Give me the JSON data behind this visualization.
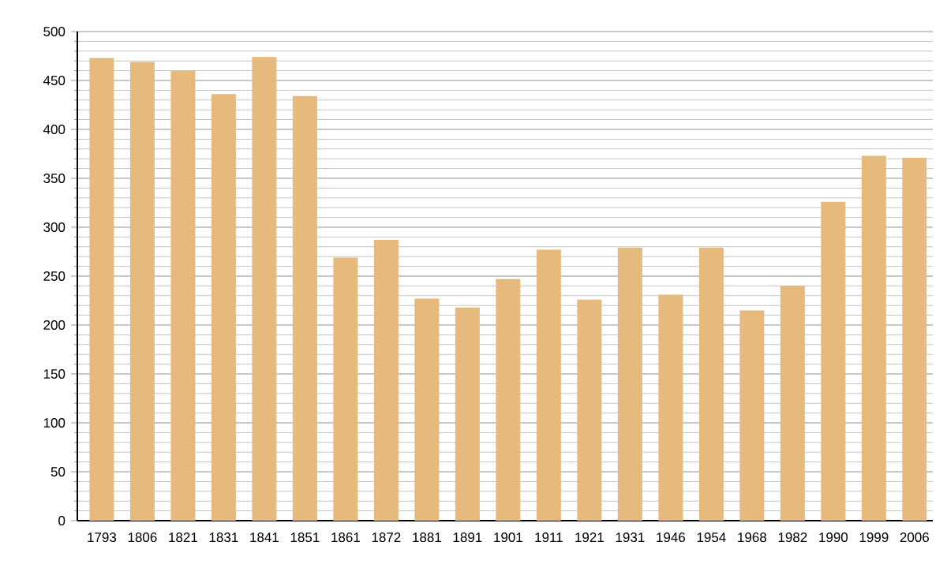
{
  "chart_data": {
    "type": "bar",
    "categories": [
      "1793",
      "1806",
      "1821",
      "1831",
      "1841",
      "1851",
      "1861",
      "1872",
      "1881",
      "1891",
      "1901",
      "1911",
      "1921",
      "1931",
      "1946",
      "1954",
      "1968",
      "1982",
      "1990",
      "1999",
      "2006"
    ],
    "values": [
      473,
      469,
      460,
      436,
      474,
      434,
      269,
      287,
      227,
      218,
      247,
      277,
      226,
      279,
      231,
      279,
      215,
      240,
      326,
      373,
      371
    ],
    "color": "#e6b97d",
    "ylim": [
      0,
      500
    ],
    "yticks": [
      0,
      50,
      100,
      150,
      200,
      250,
      300,
      350,
      400,
      450,
      500
    ],
    "grid": "y"
  }
}
